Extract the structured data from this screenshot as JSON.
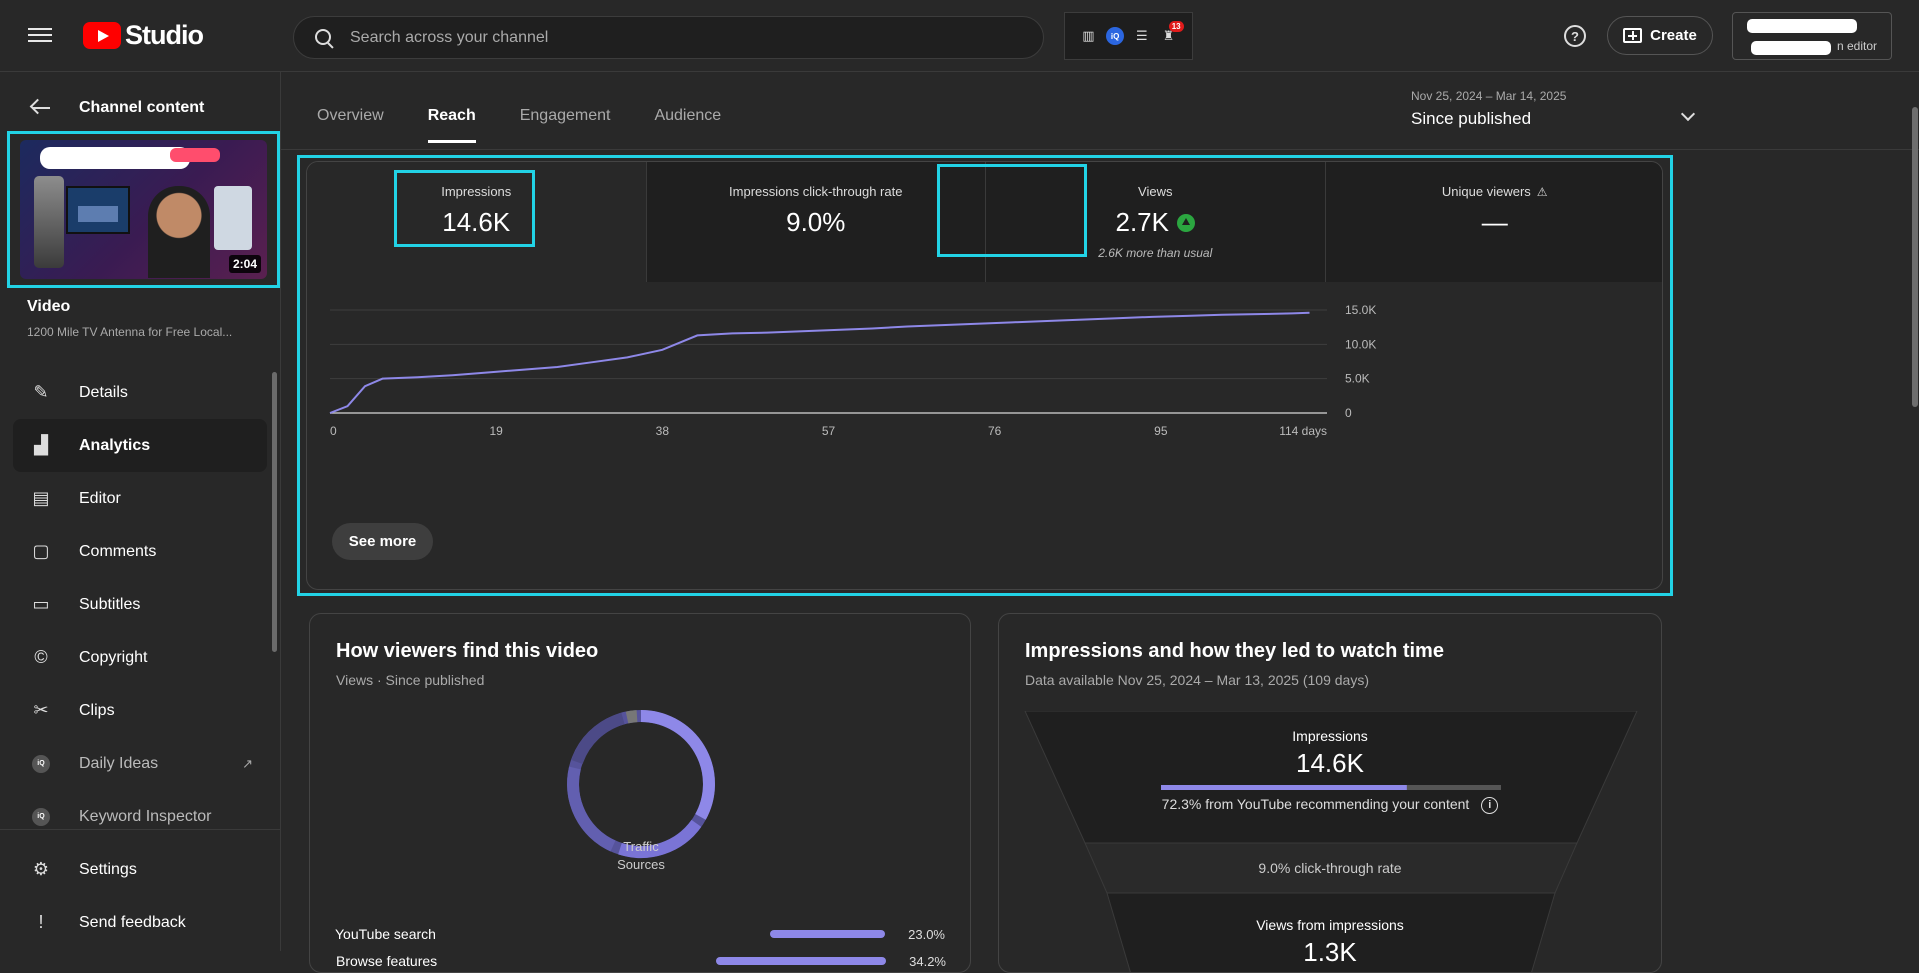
{
  "header": {
    "logo_text": "Studio",
    "search_placeholder": "Search across your channel",
    "ext_badge": "13",
    "ext_iq": "iQ",
    "help": "?",
    "create_label": "Create",
    "account_role": "n editor"
  },
  "sidebar": {
    "back_label": "Channel content",
    "video_duration": "2:04",
    "video_label": "Video",
    "video_title": "1200 Mile TV Antenna for Free Local...",
    "items": [
      {
        "label": "Details",
        "icon": "pencil-icon"
      },
      {
        "label": "Analytics",
        "icon": "analytics-icon",
        "active": true
      },
      {
        "label": "Editor",
        "icon": "clapper-icon"
      },
      {
        "label": "Comments",
        "icon": "comment-icon"
      },
      {
        "label": "Subtitles",
        "icon": "subtitles-icon"
      },
      {
        "label": "Copyright",
        "icon": "copyright-icon"
      },
      {
        "label": "Clips",
        "icon": "scissors-icon"
      },
      {
        "label": "Daily Ideas",
        "icon": "iq-icon"
      },
      {
        "label": "Keyword Inspector",
        "icon": "iq-icon"
      }
    ],
    "bottom": [
      {
        "label": "Settings",
        "icon": "gear-icon"
      },
      {
        "label": "Send feedback",
        "icon": "feedback-icon"
      }
    ]
  },
  "tabs": [
    "Overview",
    "Reach",
    "Engagement",
    "Audience"
  ],
  "active_tab": "Reach",
  "date_range": {
    "range": "Nov 25, 2024 – Mar 14, 2025",
    "label": "Since published"
  },
  "metrics": [
    {
      "label": "Impressions",
      "value": "14.6K",
      "note": ""
    },
    {
      "label": "Impressions click-through rate",
      "value": "9.0%",
      "note": ""
    },
    {
      "label": "Views",
      "value": "2.7K",
      "note": "2.6K more than usual"
    },
    {
      "label": "Unique viewers",
      "value": "—",
      "note": ""
    }
  ],
  "chart_data": {
    "type": "line",
    "title": "",
    "xlabel": "",
    "ylabel": "",
    "x_ticks": [
      "0",
      "19",
      "38",
      "57",
      "76",
      "95",
      "114 days"
    ],
    "y_ticks": [
      "0",
      "5.0K",
      "10.0K",
      "15.0K"
    ],
    "xlim": [
      0,
      114
    ],
    "ylim": [
      0,
      15000
    ],
    "grid": true,
    "color": "#8e88e8",
    "series": [
      {
        "x": [
          0,
          2,
          4,
          6,
          10,
          14,
          18,
          22,
          26,
          30,
          34,
          38,
          42,
          46,
          50,
          54,
          58,
          62,
          66,
          70,
          74,
          78,
          82,
          86,
          90,
          94,
          98,
          102,
          106,
          110,
          112
        ],
        "values": [
          0,
          1000,
          3900,
          5000,
          5200,
          5500,
          5900,
          6300,
          6700,
          7400,
          8100,
          9200,
          11300,
          11600,
          11700,
          11900,
          12100,
          12300,
          12600,
          12800,
          13000,
          13200,
          13400,
          13600,
          13800,
          14000,
          14150,
          14300,
          14400,
          14500,
          14600
        ]
      }
    ]
  },
  "see_more": "See more",
  "traffic": {
    "title": "How viewers find this video",
    "subtitle": "Views · Since published",
    "donut_label": "Traffic Sources",
    "rows": [
      {
        "label": "Browse features",
        "pct": "34.2%",
        "value": 34.2
      },
      {
        "label": "YouTube search",
        "pct": "23.0%",
        "value": 23.0
      }
    ]
  },
  "funnel": {
    "title": "Impressions and how they led to watch time",
    "subtitle": "Data available Nov 25, 2024 – Mar 13, 2025 (109 days)",
    "impressions_label": "Impressions",
    "impressions_value": "14.6K",
    "recommend_pct": 72.3,
    "recommend_text": "72.3% from YouTube recommending your content",
    "ctr_text": "9.0% click-through rate",
    "views_label": "Views from impressions",
    "views_value": "1.3K"
  }
}
